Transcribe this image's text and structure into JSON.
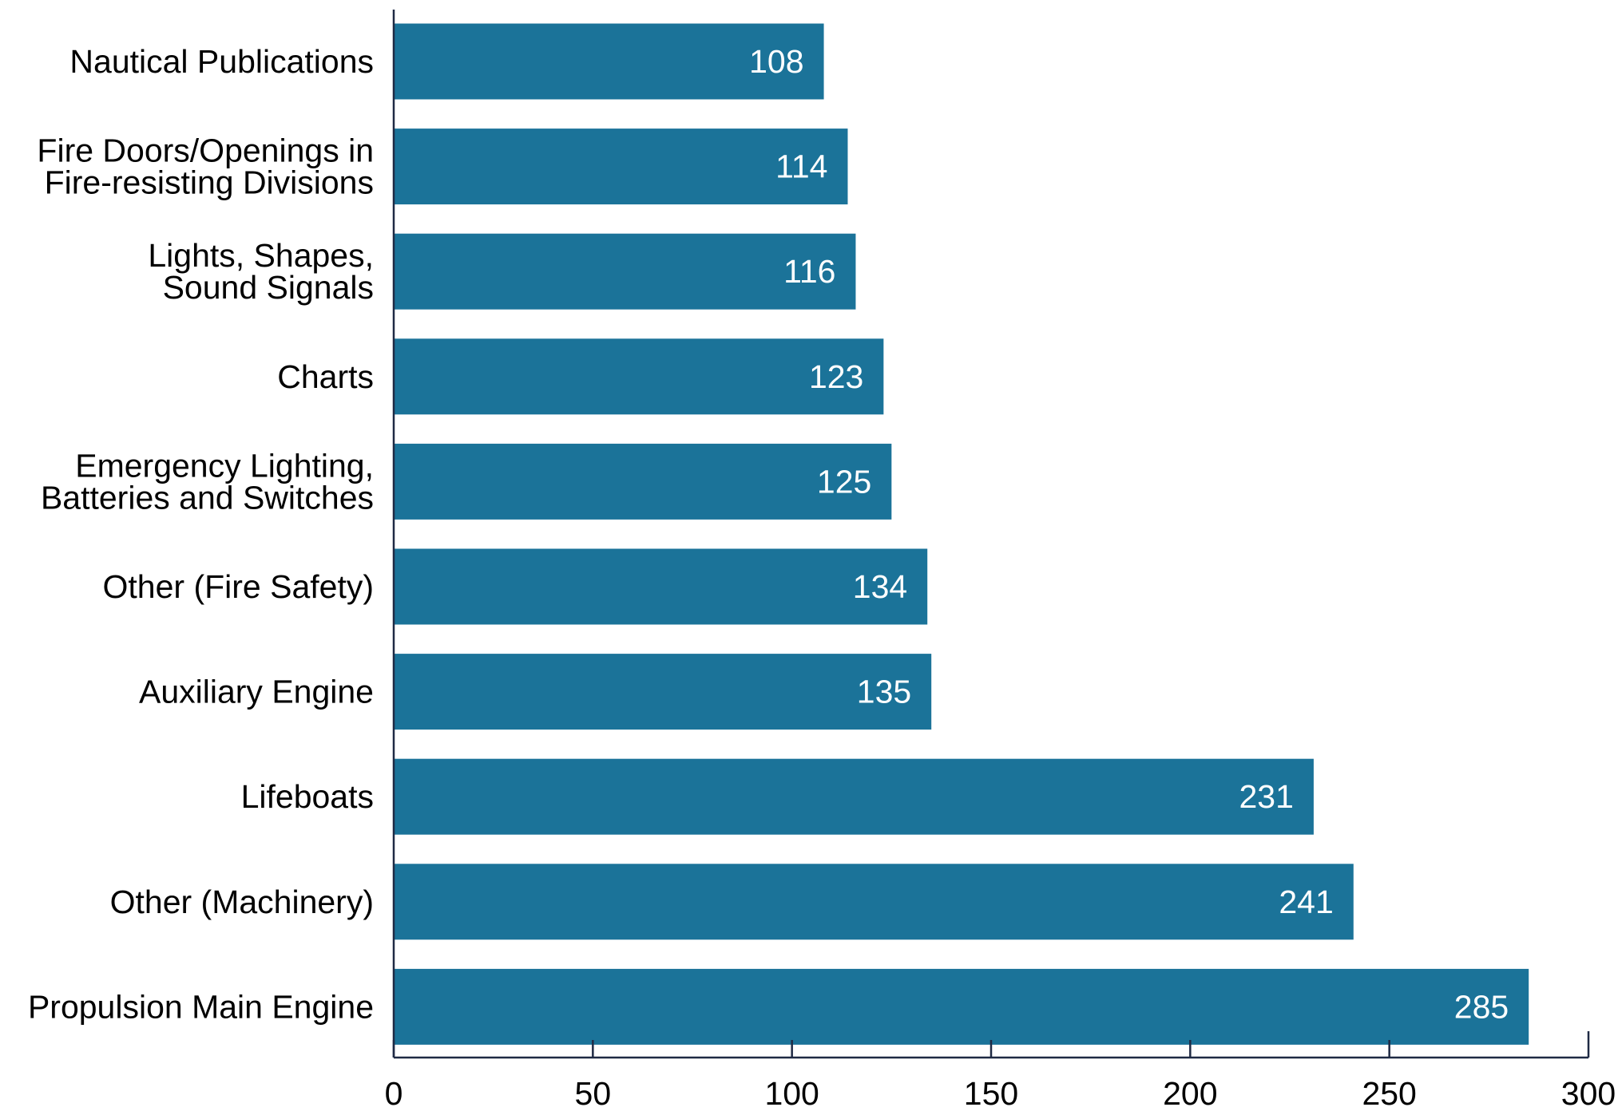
{
  "chart_data": {
    "type": "bar",
    "orientation": "horizontal",
    "categories": [
      [
        "Nautical Publications"
      ],
      [
        "Fire Doors/Openings in",
        "Fire-resisting Divisions"
      ],
      [
        "Lights, Shapes,",
        "Sound Signals"
      ],
      [
        "Charts"
      ],
      [
        "Emergency Lighting,",
        "Batteries and Switches"
      ],
      [
        "Other (Fire Safety)"
      ],
      [
        "Auxiliary Engine"
      ],
      [
        "Lifeboats"
      ],
      [
        "Other (Machinery)"
      ],
      [
        "Propulsion Main Engine"
      ]
    ],
    "values": [
      108,
      114,
      116,
      123,
      125,
      134,
      135,
      231,
      241,
      285
    ],
    "value_labels": [
      "108",
      "114",
      "116",
      "123",
      "125",
      "134",
      "135",
      "231",
      "241",
      "285"
    ],
    "xlim": [
      0,
      300
    ],
    "xticks": [
      0,
      50,
      100,
      150,
      200,
      250,
      300
    ],
    "xtick_labels": [
      "0",
      "50",
      "100",
      "150",
      "200",
      "250",
      "300"
    ],
    "data_labels": "inside-end",
    "grid": false,
    "bar_color": "#1b7399",
    "axis_color": "#1f2a44"
  }
}
